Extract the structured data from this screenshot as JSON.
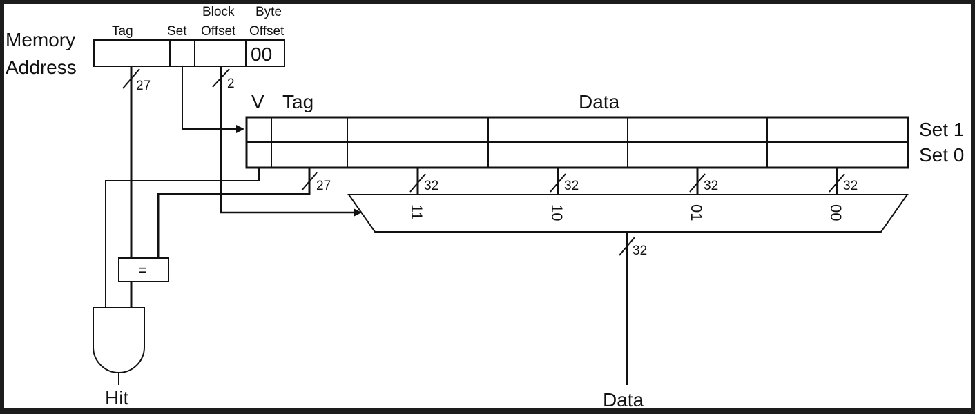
{
  "memory_address": {
    "label_line1": "Memory",
    "label_line2": "Address",
    "fields": {
      "tag": "Tag",
      "set": "Set",
      "block_offset_line1": "Block",
      "block_offset_line2": "Offset",
      "byte_offset_line1": "Byte",
      "byte_offset_line2": "Offset",
      "byte_offset_value": "00"
    }
  },
  "bus_widths": {
    "tag_from_address": "27",
    "block_offset": "2",
    "tag_from_cache": "27",
    "data_words": [
      "32",
      "32",
      "32",
      "32"
    ],
    "mux_output": "32"
  },
  "cache": {
    "headers": {
      "valid": "V",
      "tag": "Tag",
      "data": "Data"
    },
    "sets": [
      "Set 1",
      "Set 0"
    ]
  },
  "mux": {
    "inputs": [
      "11",
      "10",
      "01",
      "00"
    ]
  },
  "comparator": {
    "symbol": "="
  },
  "outputs": {
    "hit": "Hit",
    "data": "Data"
  },
  "colors": {
    "frame": "#1c1c1c",
    "background": "#ffffff",
    "ink": "#111111"
  }
}
